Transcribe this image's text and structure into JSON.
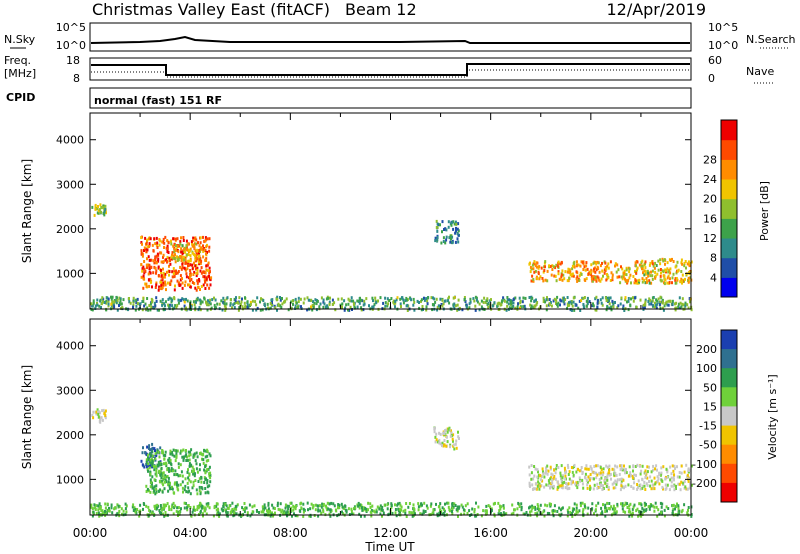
{
  "header": {
    "title": "Christmas Valley East (fitACF)",
    "beam": "Beam 12",
    "date": "12/Apr/2019"
  },
  "status_panels": {
    "nsky": {
      "label": "N.Sky",
      "left_ticks": [
        "10^5",
        "10^0"
      ]
    },
    "nsearch": {
      "label": "N.Search",
      "right_ticks": [
        "10^5",
        "10^0"
      ]
    },
    "freq": {
      "label_line1": "Freq.",
      "label_line2": "[MHz]",
      "left_ticks": [
        "18",
        "8"
      ]
    },
    "nave": {
      "label": "Nave",
      "right_ticks": [
        "60",
        "0"
      ]
    },
    "cpid": {
      "label": "CPID",
      "text": "normal (fast) 151 RF"
    }
  },
  "colors": {
    "power_scale": [
      "#0000ee",
      "#1f4ea8",
      "#2e8b8b",
      "#3da24a",
      "#8fbf2e",
      "#f0c400",
      "#ff8c00",
      "#ff4a00",
      "#ee0000"
    ],
    "velocity_scale": [
      "#1b3fb0",
      "#2f7090",
      "#2e9e4e",
      "#6fd13a",
      "#c8c8c8",
      "#f0c400",
      "#ff8c00",
      "#ff4a00",
      "#ee0000"
    ]
  },
  "chart_data": [
    {
      "type": "heatmap",
      "name": "power",
      "xlabel": "",
      "ylabel": "Slant Range [km]",
      "xlim": [
        0,
        24
      ],
      "ylim": [
        200,
        4600
      ],
      "yticks": [
        1000,
        2000,
        3000,
        4000
      ],
      "colorbar": {
        "label": "Power [dB]",
        "ticks": [
          "4",
          "8",
          "12",
          "16",
          "20",
          "24",
          "28"
        ],
        "range": [
          0,
          32
        ]
      },
      "echo_regions": [
        {
          "t_start": 0.05,
          "t_end": 0.6,
          "r_start": 2300,
          "r_end": 2600,
          "level": 16
        },
        {
          "t_start": 2.0,
          "t_end": 4.8,
          "r_start": 650,
          "r_end": 1850,
          "level": 26
        },
        {
          "t_start": 3.2,
          "t_end": 4.6,
          "r_start": 1300,
          "r_end": 1700,
          "level": 20
        },
        {
          "t_start": 13.7,
          "t_end": 14.7,
          "r_start": 1700,
          "r_end": 2200,
          "level": 10
        },
        {
          "t_start": 17.5,
          "t_end": 21.0,
          "r_start": 850,
          "r_end": 1300,
          "level": 22
        },
        {
          "t_start": 21.0,
          "t_end": 24.0,
          "r_start": 800,
          "r_end": 1350,
          "level": 20
        },
        {
          "t_start": 0.0,
          "t_end": 24.0,
          "r_start": 200,
          "r_end": 500,
          "level": 12
        }
      ]
    },
    {
      "type": "heatmap",
      "name": "velocity",
      "xlabel": "Time UT",
      "ylabel": "Slant Range [km]",
      "xlim": [
        0,
        24
      ],
      "ylim": [
        200,
        4600
      ],
      "xticks": [
        "00:00",
        "04:00",
        "08:00",
        "12:00",
        "16:00",
        "20:00",
        "00:00"
      ],
      "yticks": [
        1000,
        2000,
        3000,
        4000
      ],
      "colorbar": {
        "label": "Velocity [m s⁻¹]",
        "ticks": [
          "200",
          "100",
          "50",
          "15",
          "-15",
          "-50",
          "-100",
          "-200"
        ]
      },
      "echo_regions": [
        {
          "t_start": 0.05,
          "t_end": 0.6,
          "r_start": 2300,
          "r_end": 2600,
          "level": 0
        },
        {
          "t_start": 2.0,
          "t_end": 2.8,
          "r_start": 1300,
          "r_end": 1850,
          "level": 150
        },
        {
          "t_start": 2.2,
          "t_end": 4.8,
          "r_start": 700,
          "r_end": 1700,
          "level": 35
        },
        {
          "t_start": 13.7,
          "t_end": 14.7,
          "r_start": 1700,
          "r_end": 2200,
          "level": 0
        },
        {
          "t_start": 17.5,
          "t_end": 24.0,
          "r_start": 800,
          "r_end": 1350,
          "level": 0
        },
        {
          "t_start": 0.0,
          "t_end": 24.0,
          "r_start": 200,
          "r_end": 500,
          "level": 30
        }
      ]
    }
  ]
}
